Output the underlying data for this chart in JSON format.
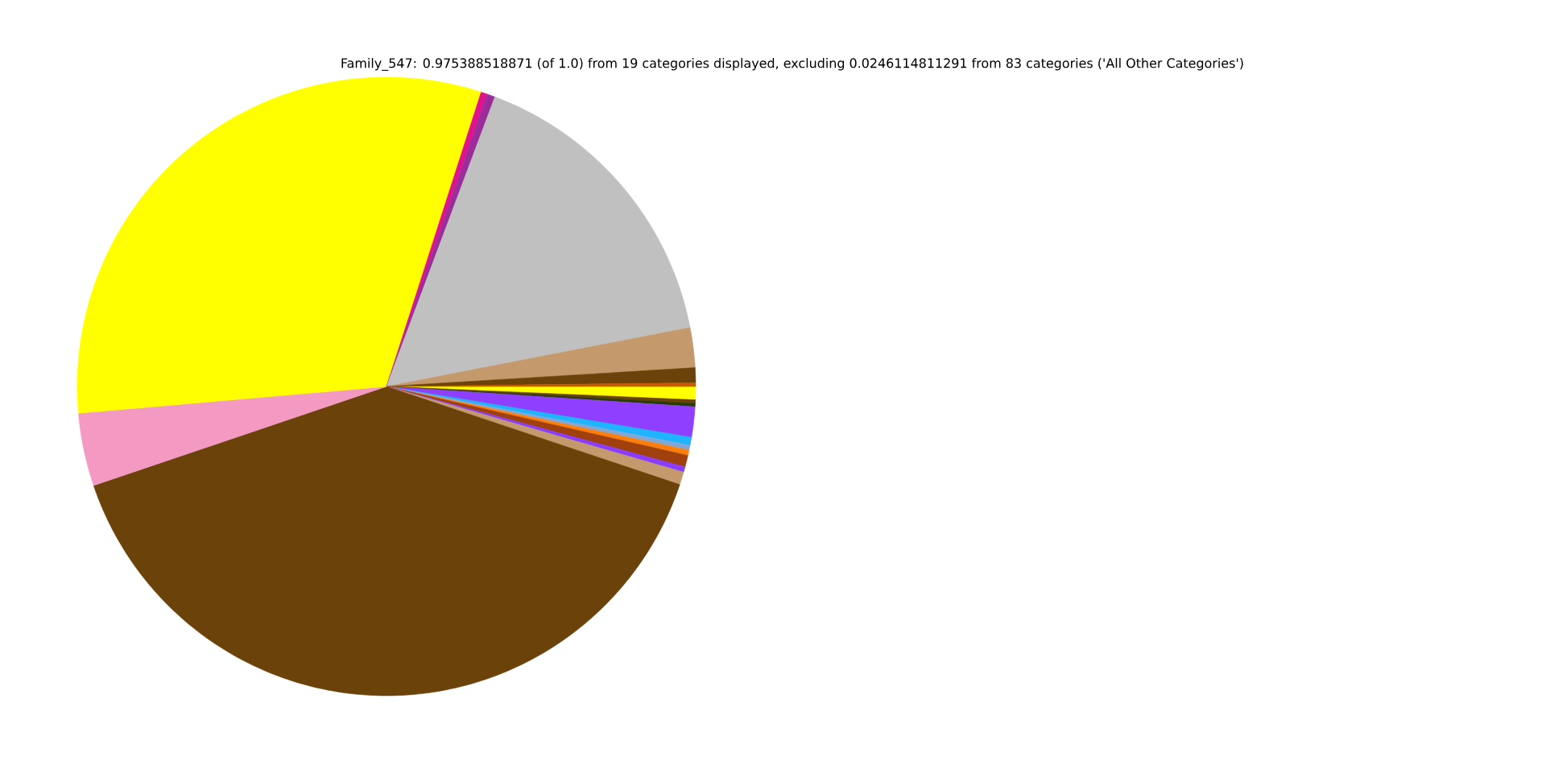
{
  "chart_data": {
    "type": "pie",
    "title": "Family_547: 0.975388518871 (of 1.0) from 19 categories displayed, excluding 0.0246114811291 from 83 categories ('All Other Categories')",
    "categories": [
      null,
      null,
      null,
      null,
      null,
      null,
      null,
      null,
      null,
      null,
      null,
      null,
      null,
      null,
      null,
      null,
      null,
      null,
      null
    ],
    "values": [
      0.19,
      0.78,
      2.08,
      16.25,
      0.42,
      0.33,
      31.33,
      3.81,
      39.67,
      0.67,
      0.28,
      0.61,
      0.28,
      0.25,
      0.42,
      1.58,
      0.18,
      0.18,
      0.69
    ],
    "colors": [
      "#c85a00",
      "#6b4209",
      "#c49a6c",
      "#c0c0c0",
      "#9b2d9b",
      "#e0138c",
      "#ffff00",
      "#f49ac2",
      "#6b4209",
      "#c49a6c",
      "#8b3dff",
      "#a0410d",
      "#ff7f0e",
      "#7fa8d8",
      "#1fb4ff",
      "#8f3fff",
      "#2a3d00",
      "#6b4209",
      "#ffff00"
    ]
  }
}
